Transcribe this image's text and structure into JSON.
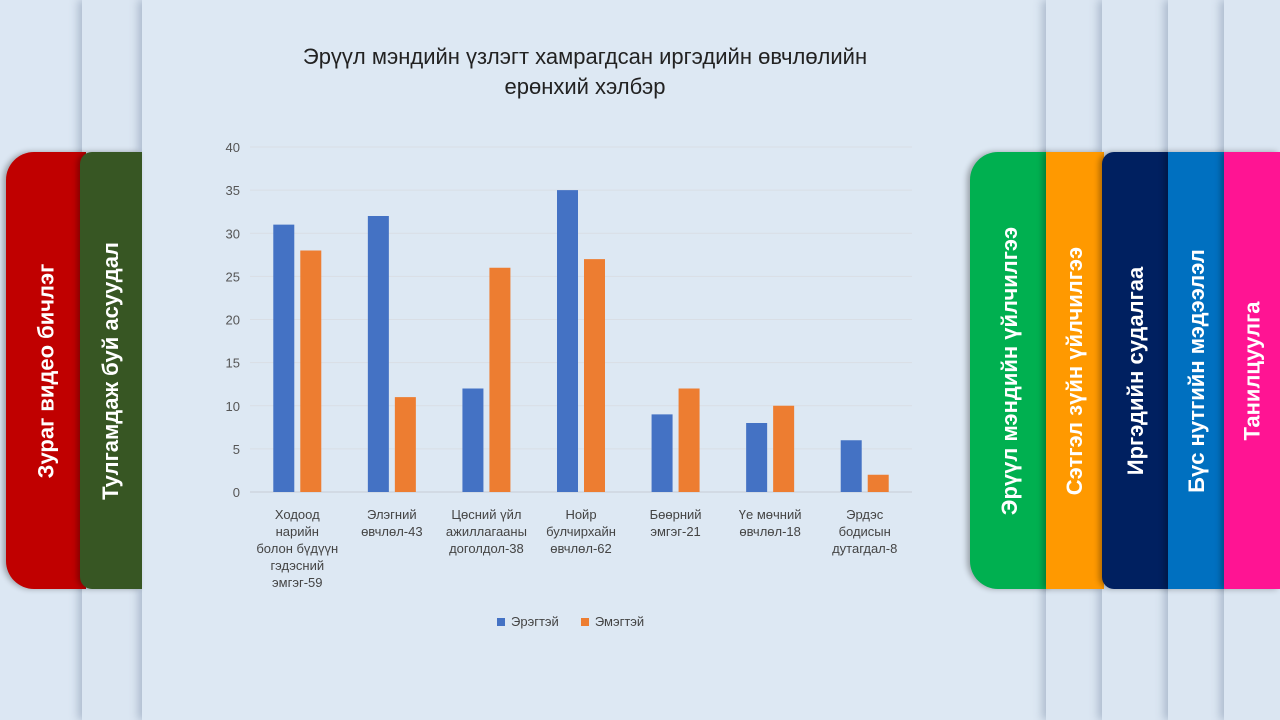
{
  "left_tabs": [
    {
      "label": "Зураг видео бичлэг",
      "color": "#c00000"
    },
    {
      "label": "Тулгамдаж буй асуудал",
      "color": "#375623"
    }
  ],
  "right_tabs": [
    {
      "label": "Эрүүл мэндийн үйлчилгээ",
      "color": "#00b050"
    },
    {
      "label": "Сэтгэл зүйн үйлчилгээ",
      "color": "#ff9900"
    },
    {
      "label": "Иргэдийн судалгаа",
      "color": "#002060"
    },
    {
      "label": "Бүс нутгийн мэдээлэл",
      "color": "#0070c0"
    },
    {
      "label": "Танилцуулга",
      "color": "#ff1493"
    }
  ],
  "chart_data": {
    "type": "bar",
    "title_lines": [
      "Эрүүл мэндийн үзлэгт хамрагдсан иргэдийн өвчлөлийн",
      "ерөнхий хэлбэр"
    ],
    "categories": [
      [
        "Ходоод",
        "нарийн",
        "болон бүдүүн",
        "гэдэсний",
        "эмгэг-59"
      ],
      [
        "Элэгний",
        "өвчлөл-43"
      ],
      [
        "Цөсний үйл",
        "ажиллагааны",
        "доголдол-38"
      ],
      [
        "Нойр",
        "булчирхайн",
        "өвчлөл-62"
      ],
      [
        "Бөөрний",
        "эмгэг-21"
      ],
      [
        "Үе мөчний",
        "өвчлөл-18"
      ],
      [
        "Эрдэс",
        "бодисын",
        "дутагдал-8"
      ]
    ],
    "series": [
      {
        "name": "Эрэгтэй",
        "color": "#4472c4",
        "values": [
          31,
          32,
          12,
          35,
          9,
          8,
          6
        ]
      },
      {
        "name": "Эмэгтэй",
        "color": "#ed7d31",
        "values": [
          28,
          11,
          26,
          27,
          12,
          10,
          2
        ]
      }
    ],
    "ylim": [
      0,
      40
    ],
    "yticks": [
      0,
      5,
      10,
      15,
      20,
      25,
      30,
      35,
      40
    ],
    "grid": true,
    "legend": "bottom"
  }
}
